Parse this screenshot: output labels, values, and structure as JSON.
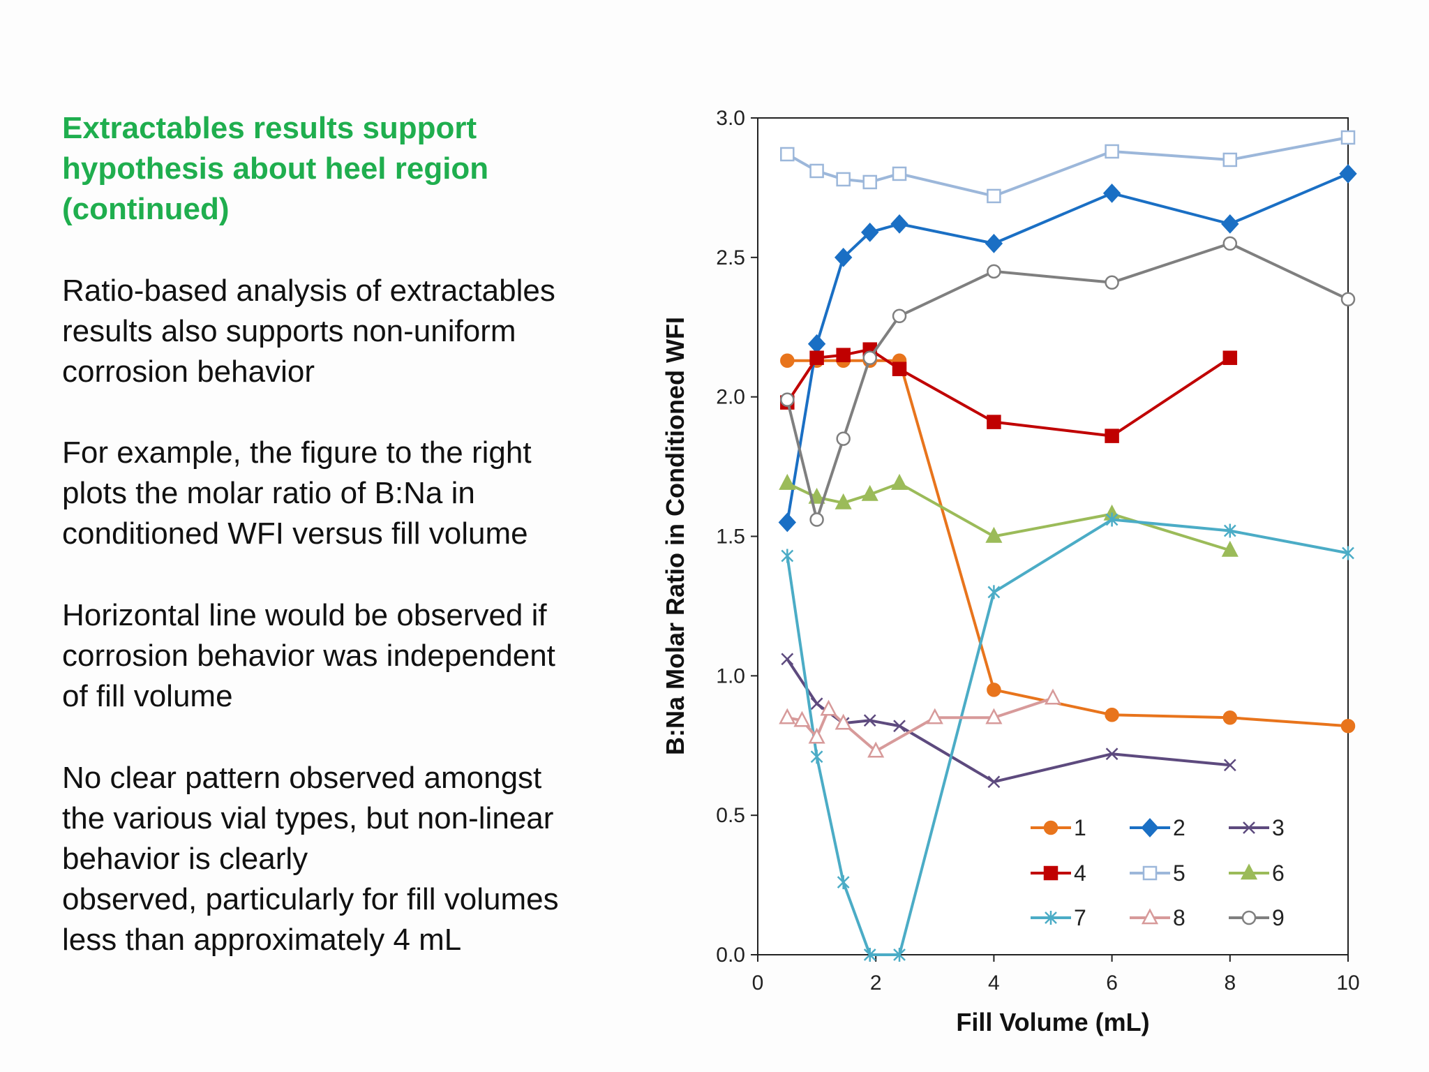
{
  "slide": {
    "title_lines": [
      "Extractables results support",
      "hypothesis about heel region",
      "(continued)"
    ],
    "paragraphs": [
      [
        "Ratio-based analysis of extractables",
        "results also supports non-uniform",
        "corrosion behavior"
      ],
      [
        "For example, the figure to the right",
        "plots the molar ratio of B:Na in",
        "conditioned WFI versus fill volume"
      ],
      [
        "Horizontal line would be observed if",
        "corrosion behavior was independent",
        "of fill volume"
      ],
      [
        "No clear pattern observed amongst",
        "the various vial types, but non-linear",
        "behavior is clearly",
        "observed, particularly for fill volumes",
        "less than approximately 4 mL"
      ]
    ]
  },
  "chart_data": {
    "type": "line",
    "title": "",
    "xlabel": "Fill Volume (mL)",
    "ylabel": "B:Na Molar Ratio in Conditioned WFI",
    "xlim": [
      0,
      10
    ],
    "ylim": [
      0,
      3.0
    ],
    "x_ticks": [
      0,
      2,
      4,
      6,
      8,
      10
    ],
    "x_tick_labels": [
      "0",
      "2",
      "4",
      "6",
      "8",
      "10"
    ],
    "y_ticks": [
      0,
      0.5,
      1.0,
      1.5,
      2.0,
      2.5,
      3.0
    ],
    "y_tick_labels": [
      "0.0",
      "0.5",
      "1.0",
      "1.5",
      "2.0",
      "2.5",
      "3.0"
    ],
    "grid": false,
    "legend_position": "bottom-right",
    "series": [
      {
        "name": "1",
        "color": "#e8741c",
        "marker": "circle",
        "filled": true,
        "x": [
          0.5,
          1.0,
          1.45,
          1.9,
          2.4,
          4.0,
          6.0,
          8.0,
          10.0
        ],
        "y": [
          2.13,
          2.13,
          2.13,
          2.13,
          2.13,
          0.95,
          0.86,
          0.85,
          0.82
        ]
      },
      {
        "name": "2",
        "color": "#1a6fc4",
        "marker": "diamond",
        "filled": true,
        "x": [
          0.5,
          1.0,
          1.45,
          1.9,
          2.4,
          4.0,
          6.0,
          8.0,
          10.0
        ],
        "y": [
          1.55,
          2.19,
          2.5,
          2.59,
          2.62,
          2.55,
          2.73,
          2.62,
          2.8
        ]
      },
      {
        "name": "3",
        "color": "#5d4a7e",
        "marker": "x",
        "filled": false,
        "x": [
          0.5,
          1.0,
          1.45,
          1.9,
          2.4,
          4.0,
          6.0,
          8.0
        ],
        "y": [
          1.06,
          0.9,
          0.83,
          0.84,
          0.82,
          0.62,
          0.72,
          0.68
        ]
      },
      {
        "name": "4",
        "color": "#c00000",
        "marker": "square",
        "filled": true,
        "x": [
          0.5,
          1.0,
          1.45,
          1.9,
          2.4,
          4.0,
          6.0,
          8.0
        ],
        "y": [
          1.98,
          2.14,
          2.15,
          2.17,
          2.1,
          1.91,
          1.86,
          2.14
        ]
      },
      {
        "name": "5",
        "color": "#9cb7da",
        "marker": "square",
        "filled": false,
        "x": [
          0.5,
          1.0,
          1.45,
          1.9,
          2.4,
          4.0,
          6.0,
          8.0,
          10.0
        ],
        "y": [
          2.87,
          2.81,
          2.78,
          2.77,
          2.8,
          2.72,
          2.88,
          2.85,
          2.93
        ]
      },
      {
        "name": "6",
        "color": "#9bbb59",
        "marker": "triangle",
        "filled": true,
        "x": [
          0.5,
          1.0,
          1.45,
          1.9,
          2.4,
          4.0,
          6.0,
          8.0
        ],
        "y": [
          1.69,
          1.64,
          1.62,
          1.65,
          1.69,
          1.5,
          1.58,
          1.45
        ]
      },
      {
        "name": "7",
        "color": "#4bacc6",
        "marker": "asterisk",
        "filled": false,
        "x": [
          0.5,
          1.0,
          1.45,
          1.9,
          2.4,
          4.0,
          6.0,
          8.0,
          10.0
        ],
        "y": [
          1.43,
          0.71,
          0.26,
          0.0,
          0.0,
          1.3,
          1.56,
          1.52,
          1.44
        ]
      },
      {
        "name": "8",
        "color": "#d79a9a",
        "marker": "triangle",
        "filled": false,
        "x": [
          0.5,
          0.75,
          1.0,
          1.2,
          1.45,
          2.0,
          3.0,
          4.0,
          5.0
        ],
        "y": [
          0.85,
          0.84,
          0.78,
          0.88,
          0.83,
          0.73,
          0.85,
          0.85,
          0.92
        ]
      },
      {
        "name": "9",
        "color": "#7f7f7f",
        "marker": "circle",
        "filled": false,
        "x": [
          0.5,
          1.0,
          1.45,
          1.9,
          2.4,
          4.0,
          6.0,
          8.0,
          10.0
        ],
        "y": [
          1.99,
          1.56,
          1.85,
          2.14,
          2.29,
          2.45,
          2.41,
          2.55,
          2.35
        ]
      }
    ]
  }
}
